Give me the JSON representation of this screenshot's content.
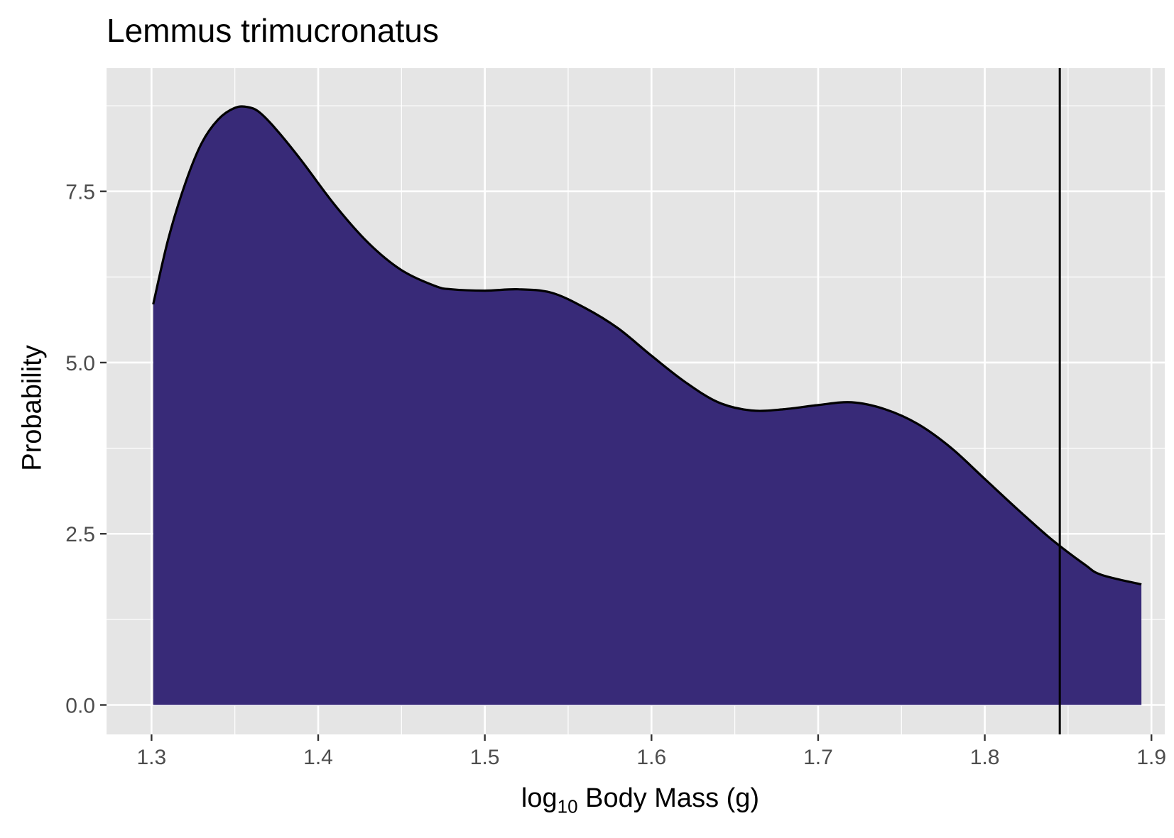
{
  "chart_data": {
    "type": "area",
    "title": "Lemmus trimucronatus",
    "xlabel_base": "log",
    "xlabel_sub": "10",
    "xlabel_rest": " Body Mass (g)",
    "ylabel": "Probability",
    "xlim": [
      1.273,
      1.908
    ],
    "ylim": [
      -0.43,
      9.3
    ],
    "x_ticks": [
      1.3,
      1.4,
      1.5,
      1.6,
      1.7,
      1.8,
      1.9
    ],
    "x_tick_labels": [
      "1.3",
      "1.4",
      "1.5",
      "1.6",
      "1.7",
      "1.8",
      "1.9"
    ],
    "y_ticks": [
      0.0,
      2.5,
      5.0,
      7.5
    ],
    "y_tick_labels": [
      "0.0",
      "2.5",
      "5.0",
      "7.5"
    ],
    "grid": true,
    "fill_color": "#382a78",
    "panel_color": "#e5e5e5",
    "vline_x": 1.845,
    "series": [
      {
        "x": [
          1.301,
          1.31,
          1.32,
          1.33,
          1.34,
          1.35,
          1.358,
          1.365,
          1.375,
          1.39,
          1.41,
          1.43,
          1.45,
          1.47,
          1.48,
          1.5,
          1.52,
          1.54,
          1.56,
          1.58,
          1.6,
          1.62,
          1.64,
          1.66,
          1.68,
          1.7,
          1.72,
          1.74,
          1.76,
          1.78,
          1.8,
          1.82,
          1.84,
          1.86,
          1.87,
          1.894
        ],
        "y": [
          5.85,
          6.8,
          7.6,
          8.2,
          8.55,
          8.72,
          8.73,
          8.65,
          8.4,
          7.95,
          7.3,
          6.75,
          6.35,
          6.12,
          6.07,
          6.05,
          6.07,
          6.02,
          5.8,
          5.5,
          5.1,
          4.72,
          4.42,
          4.3,
          4.32,
          4.38,
          4.42,
          4.32,
          4.1,
          3.75,
          3.3,
          2.85,
          2.42,
          2.05,
          1.9,
          1.76
        ]
      }
    ]
  }
}
